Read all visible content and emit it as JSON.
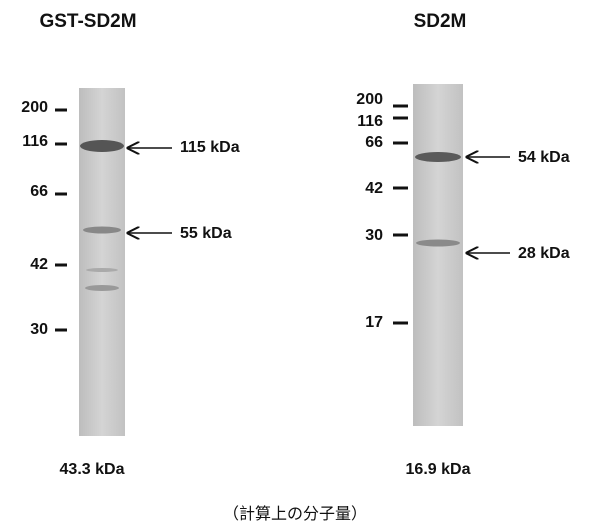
{
  "panels": [
    {
      "title": "GST-SD2M",
      "markers": [
        "200",
        "116",
        "66",
        "42",
        "30"
      ],
      "bands": [
        "115 kDa",
        "55 kDa"
      ],
      "mass": "43.3 kDa"
    },
    {
      "title": "SD2M",
      "markers": [
        "200",
        "116",
        "66",
        "42",
        "30",
        "17"
      ],
      "bands": [
        "54 kDa",
        "28 kDa"
      ],
      "mass": "16.9 kDa"
    }
  ],
  "caption": "（計算上の分子量）"
}
